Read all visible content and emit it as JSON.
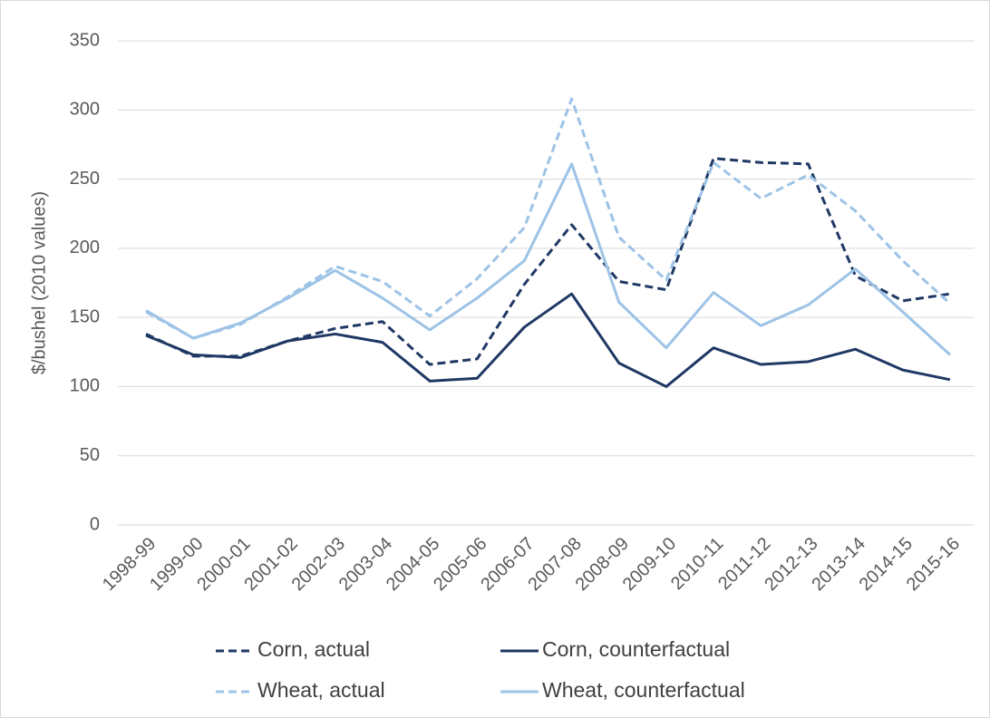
{
  "chart_data": {
    "type": "line",
    "y_label": "$/bushel (2010 values)",
    "categories": [
      "1998-99",
      "1999-00",
      "2000-01",
      "2001-02",
      "2002-03",
      "2003-04",
      "2004-05",
      "2005-06",
      "2006-07",
      "2007-08",
      "2008-09",
      "2009-10",
      "2010-11",
      "2011-12",
      "2012-13",
      "2013-14",
      "2014-15",
      "2015-16"
    ],
    "series": [
      {
        "name": "Corn, actual",
        "color": "#1f3864",
        "dashed": true,
        "values": [
          138,
          122,
          122,
          133,
          142,
          147,
          116,
          120,
          174,
          217,
          176,
          170,
          265,
          262,
          261,
          180,
          162,
          167
        ]
      },
      {
        "name": "Corn, counterfactual",
        "color": "#1f3864",
        "dashed": false,
        "values": [
          137,
          123,
          121,
          133,
          138,
          132,
          104,
          106,
          143,
          167,
          117,
          100,
          128,
          116,
          118,
          127,
          112,
          105
        ]
      },
      {
        "name": "Wheat, actual",
        "color": "#9dc3e6",
        "dashed": true,
        "values": [
          154,
          135,
          145,
          165,
          187,
          176,
          151,
          178,
          215,
          308,
          208,
          177,
          262,
          236,
          253,
          227,
          191,
          160
        ]
      },
      {
        "name": "Wheat, counterfactual",
        "color": "#9dc3e6",
        "dashed": false,
        "values": [
          155,
          135,
          146,
          164,
          184,
          164,
          141,
          164,
          191,
          261,
          161,
          128,
          168,
          144,
          159,
          185,
          154,
          123
        ]
      }
    ],
    "ylim": [
      0,
      350
    ],
    "yticks": [
      0,
      50,
      100,
      150,
      200,
      250,
      300,
      350
    ],
    "grid": true,
    "legend": "bottom"
  }
}
